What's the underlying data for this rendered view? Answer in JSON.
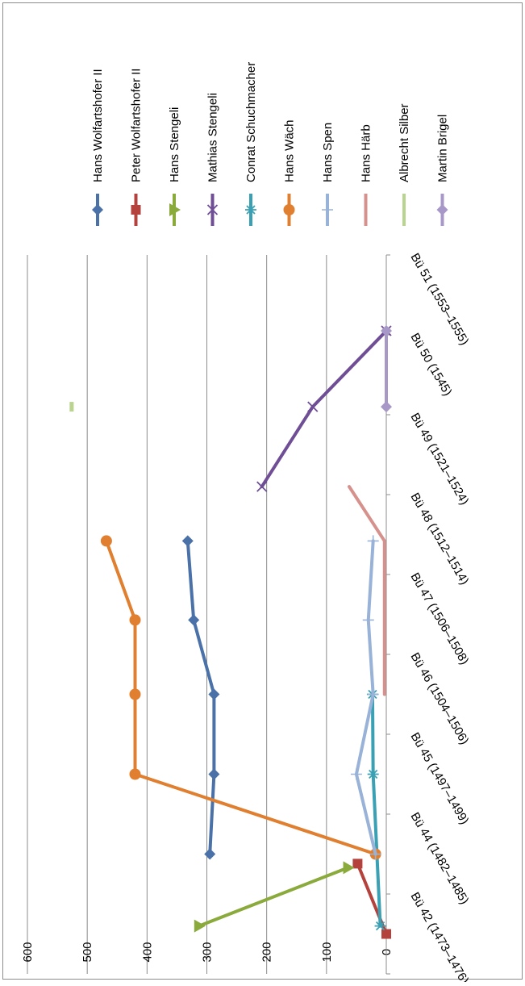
{
  "chart_data": {
    "type": "line",
    "rotation": "rotated 90 degrees clockwise",
    "title": "",
    "xlabel": "",
    "ylabel": "",
    "categories": [
      "Bü 42 (1473–1476)",
      "Bü 44 (1482–1485)",
      "Bü 45 (1497–1499)",
      "Bü 46 (1504–1506)",
      "Bü 47 (1506–1508)",
      "Bü 48 (1512–1514)",
      "Bü 49 (1521–1524)",
      "Bü 50 (1545)",
      "Bü 51 (1553–1555)"
    ],
    "yticks": [
      "0",
      "100",
      "200",
      "300",
      "400",
      "500",
      "600"
    ],
    "ylim": [
      0,
      600
    ],
    "grid": true,
    "legend_position": "right",
    "series": [
      {
        "name": "Hans Wolfartshofer II",
        "color": "#4a72a8",
        "marker": "diamond",
        "points": [
          [
            2,
            295
          ],
          [
            3,
            288
          ],
          [
            4,
            288
          ],
          [
            4.93,
            322
          ],
          [
            5.92,
            332
          ]
        ]
      },
      {
        "name": "Peter Wolfartshofer II",
        "color": "#b5413d",
        "marker": "square",
        "points": [
          [
            1,
            0
          ],
          [
            1.88,
            48
          ]
        ]
      },
      {
        "name": "Hans Stengeli",
        "color": "#8aaa3c",
        "marker": "triangle",
        "points": [
          [
            1.1,
            313
          ],
          [
            1.83,
            64
          ]
        ]
      },
      {
        "name": "Mathias Stengeli",
        "color": "#6f4e96",
        "marker": "x",
        "points": [
          [
            6.6,
            208
          ],
          [
            7.6,
            123
          ],
          [
            8.55,
            0
          ]
        ]
      },
      {
        "name": "Conrat Schuchmacher",
        "color": "#3aa0b3",
        "marker": "asterisk",
        "points": [
          [
            1.1,
            10
          ],
          [
            3,
            22
          ],
          [
            4,
            23
          ]
        ]
      },
      {
        "name": "Hans Wäch",
        "color": "#e07f2f",
        "marker": "circle",
        "points": [
          [
            2,
            18
          ],
          [
            3,
            420
          ],
          [
            4,
            420
          ],
          [
            4.93,
            420
          ],
          [
            5.92,
            468
          ]
        ]
      },
      {
        "name": "Hans Spen",
        "color": "#98b2d8",
        "marker": "plus",
        "points": [
          [
            2,
            18
          ],
          [
            3,
            50
          ],
          [
            4,
            22
          ],
          [
            4.93,
            30
          ],
          [
            5.92,
            22
          ]
        ]
      },
      {
        "name": "Hans Härb",
        "color": "#d6918d",
        "marker": "none",
        "points": [
          [
            4,
            3
          ],
          [
            4.93,
            3
          ],
          [
            5.92,
            3
          ],
          [
            6.6,
            62
          ]
        ]
      },
      {
        "name": "Albrecht Silber",
        "color": "#b8d48f",
        "marker": "none",
        "points": [
          [
            7.6,
            522
          ]
        ]
      },
      {
        "name": "Martin Brigel",
        "color": "#a898c8",
        "marker": "diamond",
        "points": [
          [
            7.6,
            0
          ],
          [
            8.55,
            0
          ]
        ]
      }
    ]
  }
}
